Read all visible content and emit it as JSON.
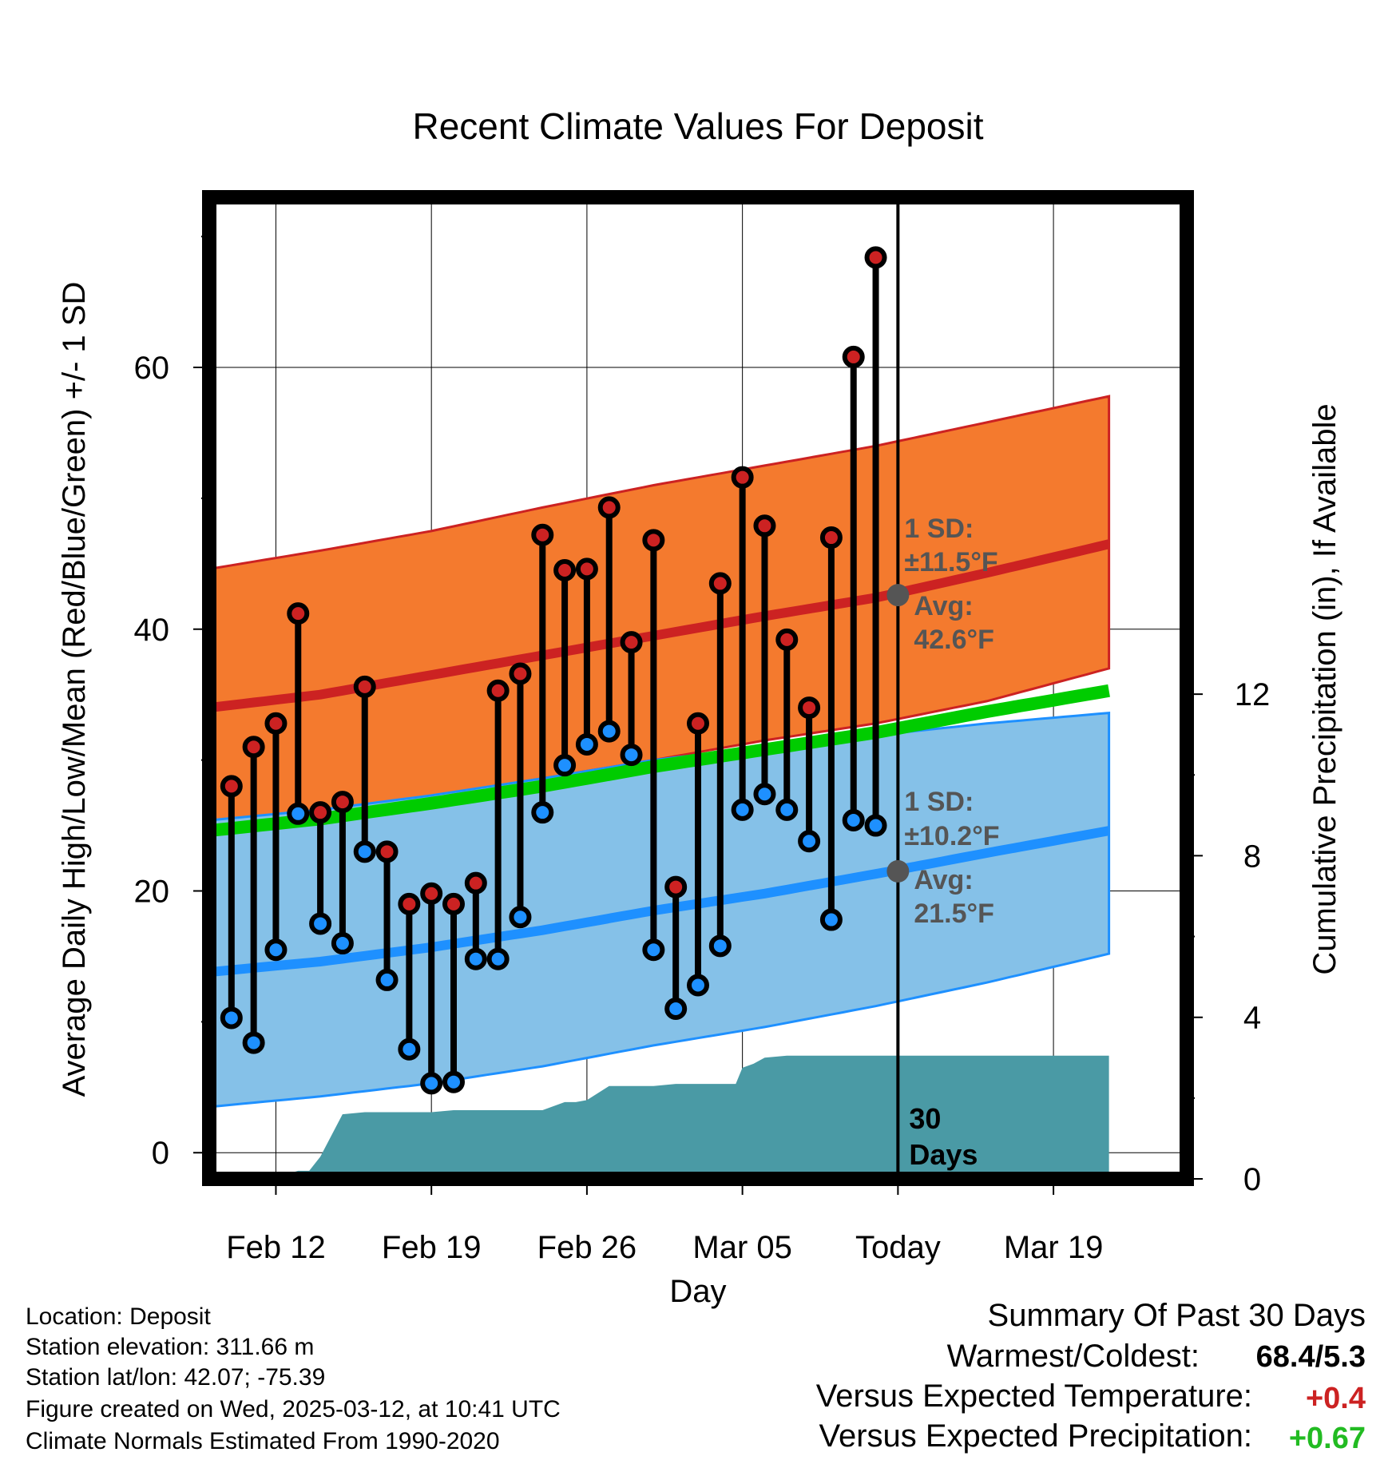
{
  "chart_data": {
    "type": "line",
    "title": "Recent Climate Values For Deposit",
    "xlabel": "Day",
    "ylabel": "Average Daily High/Low/Mean (Red/Blue/Green) +/- 1 SD",
    "y2label": "Cumulative Precipitation (in), If Available",
    "x_day_range": [
      0,
      44
    ],
    "ylim": [
      -2,
      73
    ],
    "y2lim": [
      0,
      24.3
    ],
    "y_ticks": [
      0,
      20,
      40,
      60
    ],
    "y2_ticks": [
      0,
      4,
      8,
      12
    ],
    "x_ticks": [
      {
        "day": 3,
        "label": "Feb 12"
      },
      {
        "day": 10,
        "label": "Feb 19"
      },
      {
        "day": 17,
        "label": "Feb 26"
      },
      {
        "day": 24,
        "label": "Mar 05"
      },
      {
        "day": 31,
        "label": "Today"
      },
      {
        "day": 38,
        "label": "Mar 19"
      }
    ],
    "grid": true,
    "normals_days": [
      0,
      5,
      10,
      15,
      20,
      25,
      30,
      35,
      40.5
    ],
    "normal_high": [
      34,
      35,
      36.5,
      38,
      39.5,
      41,
      42.4,
      44.3,
      46.5
    ],
    "normal_high_sd_upper": [
      44.6,
      46,
      47.5,
      49.3,
      51,
      52.5,
      54,
      55.8,
      57.8
    ],
    "normal_high_sd_lower": [
      25.2,
      26,
      27.2,
      28.6,
      30,
      31.5,
      32.8,
      34.5,
      37
    ],
    "normal_low": [
      13.8,
      14.6,
      15.7,
      17,
      18.5,
      19.8,
      21.3,
      22.9,
      24.6
    ],
    "normal_low_sd_upper": [
      25.4,
      26.2,
      27.3,
      28.6,
      30,
      31,
      31.9,
      32.8,
      33.6
    ],
    "normal_low_sd_lower": [
      3.5,
      4.3,
      5.3,
      6.6,
      8.2,
      9.6,
      11.2,
      13,
      15.2
    ],
    "normal_mean": [
      24.6,
      25.5,
      26.7,
      28,
      29.5,
      30.8,
      32.1,
      33.7,
      35.3
    ],
    "days": [
      1,
      2,
      3,
      4,
      5,
      6,
      7,
      8,
      9,
      10,
      11,
      12,
      13,
      14,
      15,
      16,
      17,
      18,
      19,
      20,
      21,
      22,
      23,
      24,
      25,
      26,
      27,
      28,
      29,
      30
    ],
    "series": [
      {
        "name": "High",
        "color": "#cc2222",
        "values": [
          28,
          31,
          32.8,
          41.2,
          26,
          26.8,
          35.6,
          23,
          19,
          19.8,
          19,
          20.6,
          35.3,
          36.6,
          47.2,
          44.5,
          44.6,
          49.3,
          39,
          46.8,
          20.3,
          32.8,
          43.5,
          51.6,
          47.9,
          39.2,
          34,
          47,
          60.8,
          68.4
        ]
      },
      {
        "name": "Low",
        "color": "#1e90ff",
        "values": [
          10.3,
          8.4,
          15.5,
          25.9,
          17.5,
          16,
          23,
          13.2,
          7.9,
          5.3,
          5.4,
          14.8,
          14.8,
          18,
          26,
          29.6,
          31.2,
          32.2,
          30.4,
          15.5,
          11,
          12.8,
          15.8,
          26.2,
          27.4,
          26.2,
          23.8,
          17.8,
          25.4,
          25
        ]
      }
    ],
    "precipitation": {
      "days": [
        0,
        2.8,
        3.5,
        3.7,
        4,
        4.5,
        5,
        6,
        7,
        8,
        9,
        10,
        11,
        12,
        13,
        14,
        15,
        16,
        16.5,
        17,
        18,
        19,
        20,
        21,
        22,
        23,
        23.7,
        24,
        24.5,
        25,
        26,
        30,
        31,
        40.5
      ],
      "values": [
        0,
        0,
        0.1,
        0.15,
        0.2,
        0.2,
        0.55,
        1.6,
        1.65,
        1.65,
        1.65,
        1.65,
        1.7,
        1.7,
        1.7,
        1.7,
        1.7,
        1.9,
        1.9,
        1.95,
        2.3,
        2.3,
        2.3,
        2.35,
        2.35,
        2.35,
        2.35,
        2.75,
        2.85,
        3,
        3.05,
        3.05,
        3.05,
        3.05
      ]
    },
    "annotations": {
      "high_sd": "1 SD:",
      "high_sd_value": "±11.5°F",
      "high_avg": "Avg:",
      "high_avg_value": "42.6°F",
      "high_avg_marker": 42.6,
      "low_sd": "1 SD:",
      "low_sd_value": "±10.2°F",
      "low_avg": "Avg:",
      "low_avg_value": "21.5°F",
      "low_avg_marker": 21.5,
      "today_label_line1": "30",
      "today_label_line2": "Days",
      "today_day": 31
    }
  },
  "station_info": {
    "location": "Location: Deposit",
    "elevation": "Station elevation: 311.66 m",
    "latlon": "Station lat/lon: 42.07; -75.39",
    "created": "Figure created on Wed, 2025-03-12, at 10:41 UTC",
    "normals": "Climate Normals Estimated From 1990-2020"
  },
  "summary": {
    "heading": "Summary Of Past 30 Days",
    "warmest_label": "Warmest/Coldest:",
    "warmest_value": "68.4/5.3",
    "temp_label": "Versus Expected Temperature:",
    "temp_value": "+0.4",
    "temp_color": "#cc2222",
    "precip_label": "Versus Expected Precipitation:",
    "precip_value": "+0.67",
    "precip_color": "#22bb22"
  }
}
